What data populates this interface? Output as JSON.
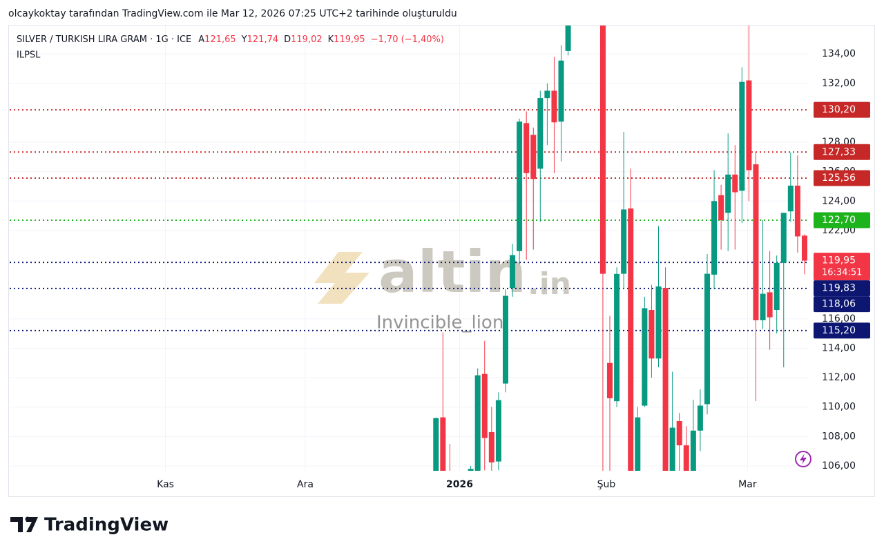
{
  "header": {
    "caption": "olcaykoktay tarafından TradingView.com ile Mar 12, 2026 07:25 UTC+2 tarihinde oluşturuldu"
  },
  "legend": {
    "symbol": "SILVER / TURKISH LIRA GRAM · 1G · ICE",
    "items": [
      {
        "key": "A",
        "label": "121,65"
      },
      {
        "key": "Y",
        "label": "121,74"
      },
      {
        "key": "D",
        "label": "119,02"
      },
      {
        "key": "K",
        "label": "119,95"
      }
    ],
    "change": "−1,70 (−1,40%)",
    "indicator": "ILPSL"
  },
  "watermark": {
    "brand": "altin",
    "suffix": ".in",
    "author": "Invincible_lion"
  },
  "footer": {
    "brand": "TradingView"
  },
  "chart_data": {
    "type": "candlestick",
    "up_color": "#089981",
    "down_color": "#f23645",
    "grid": true,
    "x": [
      61,
      62,
      63,
      66,
      67,
      68,
      69,
      70,
      71,
      72,
      73,
      74,
      75,
      76,
      77,
      78,
      79,
      80,
      85,
      86,
      87,
      88,
      89,
      90,
      91,
      92,
      93,
      94,
      95,
      96,
      97,
      98,
      99,
      100,
      101,
      102,
      103,
      104,
      105,
      106,
      107,
      108,
      109,
      110,
      111,
      112,
      113,
      114
    ],
    "open": [
      104.5,
      109.3,
      105.5,
      105.4,
      105.6,
      112.25,
      108.3,
      106.3,
      111.6,
      118.1,
      120.6,
      129.3,
      128.5,
      126.2,
      131,
      131.5,
      129.4,
      134.2,
      137,
      113,
      110.4,
      119.06,
      123.5,
      105.3,
      110.1,
      116.6,
      113.3,
      118.1,
      105.5,
      109.05,
      107.4,
      105.5,
      108.4,
      110.2,
      119,
      124.4,
      123.2,
      125.8,
      124.7,
      132.2,
      126.5,
      115.9,
      117.8,
      116.6,
      119.8,
      123.3,
      125.05,
      121.65
    ],
    "high": [
      109.3,
      115.07,
      107.5,
      106,
      112.63,
      114.5,
      110,
      111,
      118,
      121.1,
      129.6,
      130.1,
      129,
      131.5,
      132,
      133.8,
      134.6,
      137,
      138,
      116.2,
      119.5,
      128.7,
      126.2,
      110,
      117.5,
      118.3,
      122.3,
      119.5,
      112.4,
      109.6,
      108.7,
      110.5,
      111.2,
      120.4,
      126.1,
      125.1,
      128.6,
      127.8,
      133.1,
      136.2,
      127.3,
      122.7,
      120.6,
      120.3,
      123.2,
      127.3,
      127.1,
      121.74
    ],
    "low": [
      104,
      104,
      104.5,
      104,
      105.3,
      105.7,
      105.2,
      105.7,
      111,
      117.5,
      119.7,
      120,
      120.7,
      122.6,
      127.8,
      125.9,
      126.7,
      133.9,
      105.3,
      105.5,
      110,
      118,
      105,
      105,
      110,
      112,
      112.7,
      105,
      105,
      105.2,
      105,
      105,
      107,
      109.5,
      118,
      120.7,
      120.6,
      120.7,
      122.5,
      124,
      110.4,
      115.3,
      113.9,
      115,
      112.7,
      122.6,
      120.5,
      119.02
    ],
    "close": [
      109.25,
      104.8,
      105.2,
      105.8,
      112.16,
      107.9,
      106.24,
      110.47,
      117.56,
      120.33,
      129.4,
      125.9,
      125.5,
      131,
      131.5,
      129.35,
      133.55,
      136.5,
      119.06,
      110.6,
      119.05,
      123.43,
      105.3,
      109.3,
      116.72,
      113.3,
      118.2,
      105.3,
      108.6,
      107.4,
      105.5,
      108.4,
      110.1,
      119.06,
      124,
      122.7,
      125.8,
      124.6,
      132.1,
      126.1,
      115.9,
      117.7,
      116.1,
      119.8,
      123.2,
      125.05,
      121.6,
      119.95
    ],
    "xlim": [
      -0.3,
      114.5
    ],
    "xticks": [
      {
        "value": 22.1,
        "label": "Kas"
      },
      {
        "value": 42.2,
        "label": "Ara"
      },
      {
        "value": 64.4,
        "label": "2026"
      },
      {
        "value": 85.5,
        "label": "Şub"
      },
      {
        "value": 105.8,
        "label": "Mar"
      }
    ],
    "ylim": [
      105.67,
      135.93
    ],
    "yticks": [
      {
        "value": 106,
        "label": "106,00"
      },
      {
        "value": 108,
        "label": "108,00"
      },
      {
        "value": 110,
        "label": "110,00"
      },
      {
        "value": 112,
        "label": "112,00"
      },
      {
        "value": 114,
        "label": "114,00"
      },
      {
        "value": 116,
        "label": "116,00"
      },
      {
        "value": 122,
        "label": "122,00"
      },
      {
        "value": 124,
        "label": "124,00"
      },
      {
        "value": 126,
        "label": "126,00"
      },
      {
        "value": 128,
        "label": "128,00"
      },
      {
        "value": 132,
        "label": "132,00"
      },
      {
        "value": 134,
        "label": "134,00"
      }
    ],
    "levels": [
      {
        "value": 130.2,
        "label": "130,20",
        "color": "#c62828"
      },
      {
        "value": 127.33,
        "label": "127,33",
        "color": "#c62828"
      },
      {
        "value": 125.56,
        "label": "125,56",
        "color": "#c62828"
      },
      {
        "value": 122.7,
        "label": "122,70",
        "color": "#1db31d"
      },
      {
        "value": 119.83,
        "label": "119,83",
        "color": "#0d1670"
      },
      {
        "value": 118.06,
        "label": "118,06",
        "color": "#0d1670"
      },
      {
        "value": 115.2,
        "label": "115,20",
        "color": "#0d1670"
      }
    ],
    "last_price": {
      "value": 119.95,
      "label": "119,95",
      "countdown": "16:34:51",
      "color": "#f23645"
    }
  }
}
